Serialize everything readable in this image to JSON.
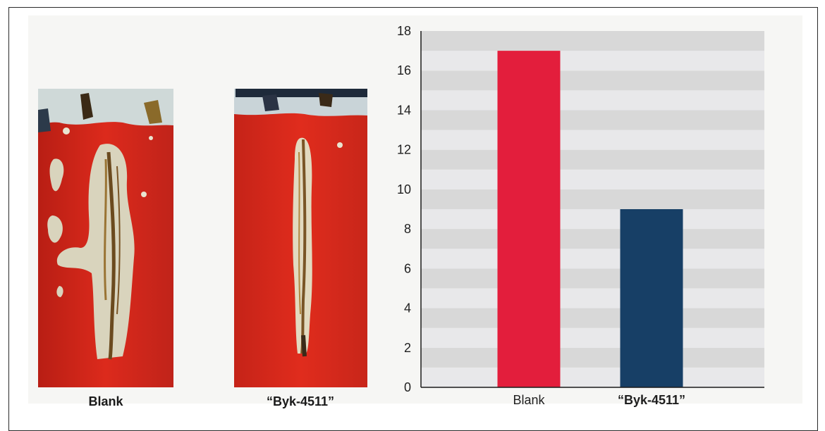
{
  "photos": [
    {
      "caption": "Blank"
    },
    {
      "caption": "“Byk-4511”"
    }
  ],
  "chart_data": {
    "type": "bar",
    "title": "",
    "xlabel": "",
    "ylabel": "",
    "categories": [
      "Blank",
      "“Byk-4511”"
    ],
    "values": [
      17,
      9
    ],
    "ylim": [
      0,
      18
    ],
    "yticks": [
      0,
      2,
      4,
      6,
      8,
      10,
      12,
      14,
      16,
      18
    ],
    "grid": "alternating horizontal bands",
    "colors": {
      "bars": [
        "#e31e3c",
        "#173f66"
      ],
      "band_dark": "#d8d8d8",
      "band_light": "#e8e8ea"
    }
  }
}
